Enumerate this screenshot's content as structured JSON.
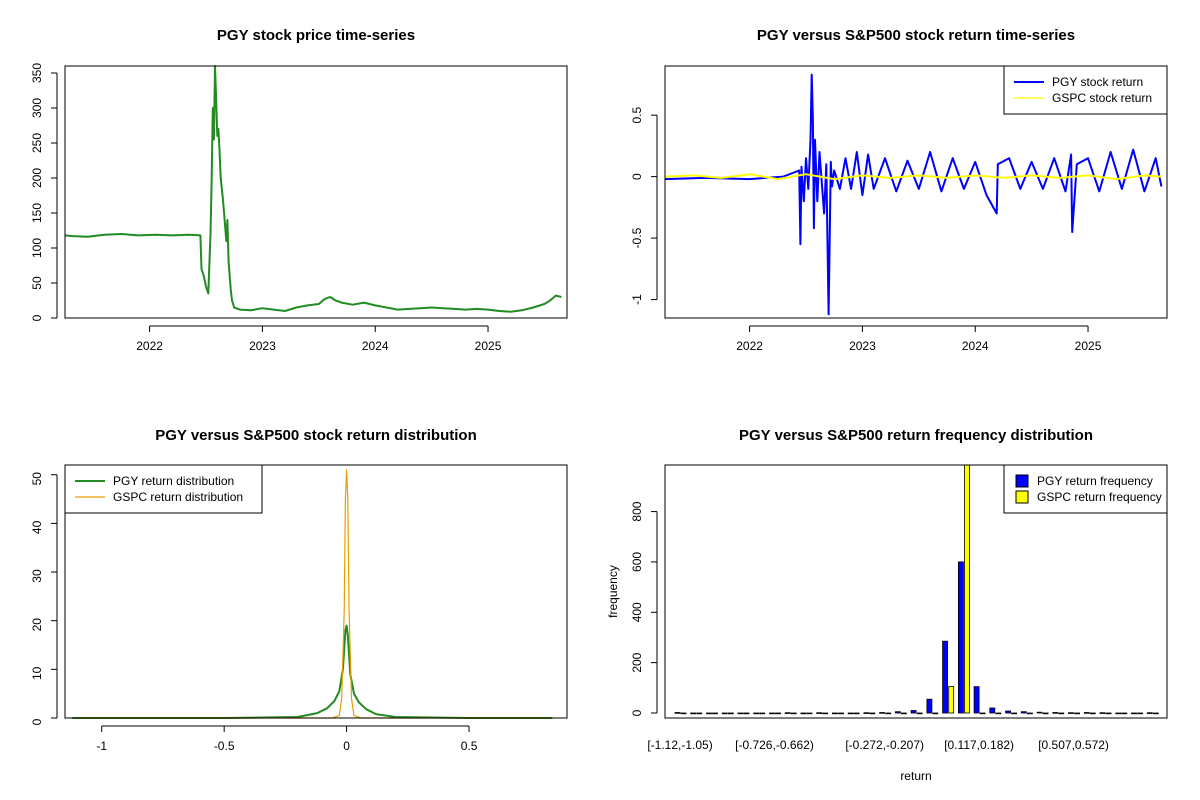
{
  "chart_data": [
    {
      "type": "line",
      "title": "PGY stock price time-series",
      "xlabel": "",
      "ylabel": "",
      "xlim": [
        2021.25,
        2025.7
      ],
      "ylim": [
        0,
        360
      ],
      "x_ticks": [
        2022,
        2023,
        2024,
        2025
      ],
      "y_ticks": [
        0,
        50,
        100,
        150,
        200,
        250,
        300,
        350
      ],
      "color": "#228B22",
      "series": [
        {
          "x": [
            2021.25,
            2021.32,
            2021.45,
            2021.6,
            2021.75,
            2021.9,
            2022.05,
            2022.2,
            2022.35,
            2022.45,
            2022.46,
            2022.48,
            2022.5,
            2022.52,
            2022.54,
            2022.55,
            2022.56,
            2022.57,
            2022.58,
            2022.59,
            2022.6,
            2022.61,
            2022.62,
            2022.63,
            2022.65,
            2022.66,
            2022.67,
            2022.68,
            2022.69,
            2022.7,
            2022.72,
            2022.73,
            2022.75,
            2022.8,
            2022.9,
            2023.0,
            2023.1,
            2023.2,
            2023.3,
            2023.4,
            2023.5,
            2023.55,
            2023.6,
            2023.65,
            2023.7,
            2023.8,
            2023.9,
            2024.0,
            2024.1,
            2024.2,
            2024.3,
            2024.4,
            2024.5,
            2024.6,
            2024.7,
            2024.8,
            2024.9,
            2025.0,
            2025.1,
            2025.2,
            2025.3,
            2025.4,
            2025.5,
            2025.55,
            2025.6,
            2025.65
          ],
          "y": [
            118,
            117,
            116,
            119,
            120,
            118,
            119,
            118,
            119,
            118,
            70,
            60,
            45,
            35,
            120,
            200,
            300,
            255,
            360,
            310,
            260,
            270,
            240,
            200,
            170,
            150,
            130,
            110,
            140,
            80,
            40,
            25,
            15,
            12,
            11,
            14,
            12,
            10,
            15,
            18,
            20,
            27,
            30,
            25,
            22,
            19,
            22,
            18,
            15,
            12,
            13,
            14,
            15,
            14,
            13,
            12,
            13,
            12,
            10,
            9,
            11,
            15,
            20,
            25,
            32,
            30
          ]
        }
      ]
    },
    {
      "type": "line",
      "title": "PGY versus S&P500 stock return time-series",
      "xlabel": "",
      "ylabel": "",
      "xlim": [
        2021.25,
        2025.7
      ],
      "ylim": [
        -1.15,
        0.9
      ],
      "x_ticks": [
        2022,
        2023,
        2024,
        2025
      ],
      "y_ticks": [
        -1.0,
        -0.5,
        0.0,
        0.5
      ],
      "legend": "top-right",
      "series": [
        {
          "name": "PGY stock return",
          "color": "#0000FF",
          "x": [
            2021.25,
            2021.6,
            2022.0,
            2022.3,
            2022.44,
            2022.45,
            2022.46,
            2022.48,
            2022.5,
            2022.52,
            2022.54,
            2022.55,
            2022.56,
            2022.57,
            2022.58,
            2022.6,
            2022.62,
            2022.64,
            2022.66,
            2022.68,
            2022.7,
            2022.72,
            2022.73,
            2022.75,
            2022.8,
            2022.85,
            2022.9,
            2022.95,
            2023.0,
            2023.05,
            2023.1,
            2023.2,
            2023.3,
            2023.4,
            2023.5,
            2023.6,
            2023.7,
            2023.8,
            2023.9,
            2024.0,
            2024.1,
            2024.19,
            2024.2,
            2024.3,
            2024.4,
            2024.5,
            2024.6,
            2024.7,
            2024.8,
            2024.85,
            2024.86,
            2024.9,
            2025.0,
            2025.1,
            2025.2,
            2025.3,
            2025.4,
            2025.5,
            2025.6,
            2025.65
          ],
          "y": [
            -0.02,
            -0.01,
            -0.02,
            0.0,
            0.05,
            -0.55,
            0.08,
            -0.2,
            0.15,
            -0.1,
            0.3,
            0.83,
            0.5,
            -0.42,
            0.3,
            -0.2,
            0.2,
            -0.05,
            -0.3,
            0.1,
            -1.12,
            0.12,
            -0.08,
            0.05,
            -0.1,
            0.15,
            -0.1,
            0.2,
            -0.15,
            0.18,
            -0.1,
            0.15,
            -0.12,
            0.13,
            -0.1,
            0.2,
            -0.12,
            0.15,
            -0.1,
            0.12,
            -0.15,
            -0.3,
            0.1,
            0.15,
            -0.1,
            0.12,
            -0.1,
            0.15,
            -0.12,
            0.18,
            -0.45,
            0.1,
            0.15,
            -0.12,
            0.2,
            -0.1,
            0.22,
            -0.12,
            0.15,
            -0.08
          ]
        },
        {
          "name": "GSPC stock return",
          "color": "#FFFF00",
          "x": [
            2021.25,
            2021.5,
            2021.75,
            2022.0,
            2022.25,
            2022.5,
            2022.75,
            2023.0,
            2023.25,
            2023.5,
            2023.75,
            2024.0,
            2024.25,
            2024.5,
            2024.75,
            2025.0,
            2025.25,
            2025.5,
            2025.65
          ],
          "y": [
            0.0,
            0.01,
            -0.01,
            0.02,
            -0.02,
            0.02,
            -0.02,
            0.01,
            -0.01,
            0.01,
            -0.01,
            0.01,
            -0.01,
            0.01,
            -0.01,
            0.01,
            -0.02,
            0.01,
            0.0
          ]
        }
      ]
    },
    {
      "type": "line",
      "title": "PGY versus S&P500 stock return distribution",
      "xlabel": "",
      "ylabel": "",
      "xlim": [
        -1.15,
        0.9
      ],
      "ylim": [
        0,
        52
      ],
      "x_ticks": [
        -1.0,
        -0.5,
        0.0,
        0.5
      ],
      "y_ticks": [
        0,
        10,
        20,
        30,
        40,
        50
      ],
      "legend": "top-left",
      "series": [
        {
          "name": "PGY return distribution",
          "color": "#228B22",
          "x": [
            -1.12,
            -0.5,
            -0.2,
            -0.12,
            -0.08,
            -0.05,
            -0.03,
            -0.015,
            -0.005,
            0.0,
            0.005,
            0.015,
            0.03,
            0.05,
            0.08,
            0.12,
            0.2,
            0.5,
            0.84
          ],
          "y": [
            0,
            0,
            0.2,
            1.0,
            2.0,
            3.5,
            5.5,
            10,
            18,
            19,
            17,
            9,
            5,
            3.2,
            1.8,
            0.8,
            0.2,
            0,
            0
          ]
        },
        {
          "name": "GSPC return distribution",
          "color": "#E69F00",
          "x": [
            -1.12,
            -0.06,
            -0.03,
            -0.02,
            -0.01,
            -0.005,
            0.0,
            0.005,
            0.01,
            0.02,
            0.03,
            0.06,
            0.84
          ],
          "y": [
            0,
            0,
            0.5,
            4,
            22,
            45,
            51,
            45,
            22,
            4,
            0.5,
            0,
            0
          ]
        }
      ]
    },
    {
      "type": "bar",
      "title": "PGY versus S&P500 return frequency distribution",
      "xlabel": "return",
      "ylabel": "frequency",
      "ylim": [
        0,
        985
      ],
      "y_ticks": [
        0,
        200,
        400,
        600,
        800
      ],
      "legend": "top-right",
      "category_labels_shown": [
        "[-1.12,-1.05)",
        "[-0.726,-0.662)",
        "[-0.272,-0.207)",
        "[0.117,0.182)",
        "[0.507,0.572)"
      ],
      "category_label_positions": [
        0,
        6,
        13,
        19,
        25
      ],
      "n_categories": 31,
      "series": [
        {
          "name": "PGY return frequency",
          "color": "#0000FF",
          "values": [
            2,
            0,
            0,
            0,
            0,
            0,
            0,
            1,
            0,
            1,
            0,
            0,
            1,
            2,
            5,
            10,
            55,
            285,
            600,
            105,
            20,
            8,
            5,
            3,
            2,
            1,
            2,
            1,
            0,
            0,
            1
          ]
        },
        {
          "name": "GSPC return frequency",
          "color": "#FFFF00",
          "values": [
            0,
            0,
            0,
            0,
            0,
            0,
            0,
            0,
            0,
            0,
            0,
            0,
            0,
            0,
            0,
            0,
            0,
            105,
            985,
            0,
            0,
            0,
            0,
            0,
            0,
            0,
            0,
            0,
            0,
            0,
            0
          ]
        }
      ]
    }
  ]
}
